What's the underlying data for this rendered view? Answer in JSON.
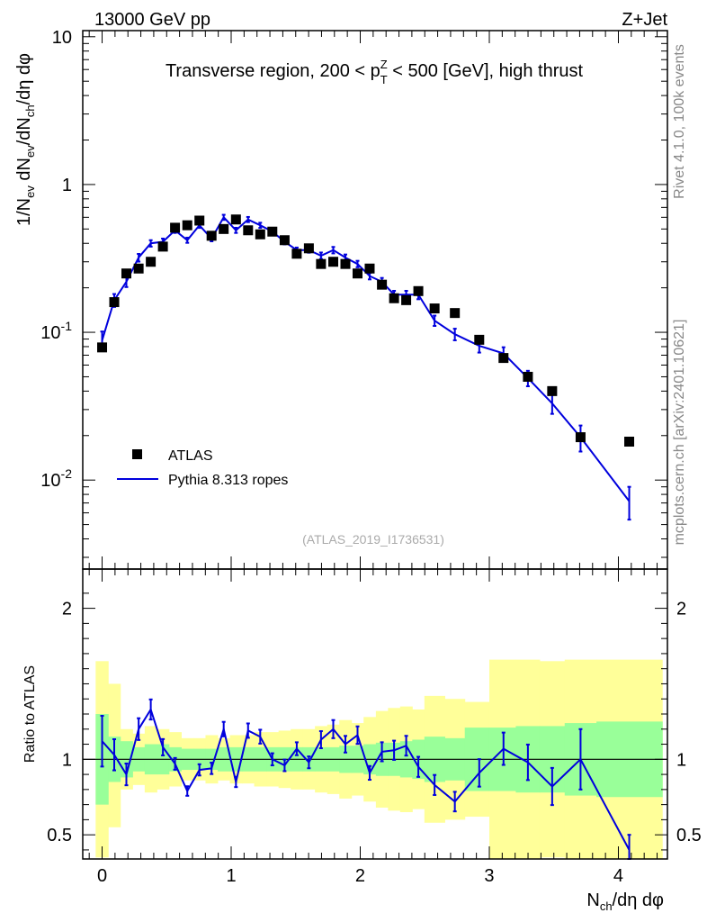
{
  "header": {
    "energy_label": "13000 GeV pp",
    "process_label": "Z+Jet",
    "rivet_label": "Rivet 4.1.0,  100k events",
    "source_label": "mcplots.cern.ch [arXiv:2401.10621]",
    "analysis_label": "(ATLAS_2019_I1736531)"
  },
  "chart_data": [
    {
      "type": "scatter",
      "scale": "log",
      "title": "Transverse region, 200 < p_T^Z < 500 [GeV], high thrust",
      "title_pre": "Transverse region, 200 < p",
      "title_sub": "T",
      "title_sup": "Z",
      "title_post": " < 500 [GeV], high thrust",
      "ylabel": "1/N_ev dN_ev/dN_ch/dη dφ",
      "xlabel": "N_ch/dη dφ",
      "xlim": [
        -0.15,
        4.38
      ],
      "ylim": [
        0.0025,
        11
      ],
      "x_ticks": [
        "0",
        "1",
        "2",
        "3",
        "4"
      ],
      "y_ticks": [
        {
          "base": "10",
          "exp": "-2",
          "value": 0.01
        },
        {
          "base": "10",
          "exp": "-1",
          "value": 0.1
        },
        {
          "base": "1",
          "exp": "",
          "value": 1
        },
        {
          "base": "10",
          "exp": "",
          "value": 10
        }
      ],
      "legend": {
        "position": "bottom-left",
        "data_label": "ATLAS",
        "mc_label": "Pythia 8.313 ropes"
      },
      "series": [
        {
          "name": "ATLAS",
          "color": "#000000",
          "x": [
            0,
            0.094,
            0.188,
            0.283,
            0.377,
            0.471,
            0.565,
            0.66,
            0.754,
            0.848,
            0.942,
            1.037,
            1.131,
            1.225,
            1.319,
            1.414,
            1.508,
            1.602,
            1.696,
            1.791,
            1.885,
            1.979,
            2.073,
            2.168,
            2.262,
            2.356,
            2.45,
            2.576,
            2.733,
            2.922,
            3.11,
            3.299,
            3.487,
            3.707,
            4.084
          ],
          "y": [
            0.079,
            0.16,
            0.25,
            0.27,
            0.3,
            0.38,
            0.51,
            0.53,
            0.57,
            0.45,
            0.5,
            0.58,
            0.49,
            0.46,
            0.48,
            0.42,
            0.34,
            0.37,
            0.29,
            0.3,
            0.29,
            0.25,
            0.27,
            0.21,
            0.17,
            0.165,
            0.19,
            0.145,
            0.135,
            0.089,
            0.067,
            0.05,
            0.04,
            0.0195,
            0.0182
          ]
        },
        {
          "name": "Pythia 8.313 ropes",
          "color": "#0000dd",
          "x": [
            0,
            0.094,
            0.188,
            0.283,
            0.377,
            0.471,
            0.565,
            0.66,
            0.754,
            0.848,
            0.942,
            1.037,
            1.131,
            1.225,
            1.319,
            1.414,
            1.508,
            1.602,
            1.696,
            1.791,
            1.885,
            1.979,
            2.073,
            2.168,
            2.262,
            2.356,
            2.45,
            2.576,
            2.733,
            2.922,
            3.11,
            3.299,
            3.487,
            3.707,
            4.084
          ],
          "y": [
            0.088,
            0.165,
            0.22,
            0.32,
            0.4,
            0.41,
            0.49,
            0.42,
            0.53,
            0.43,
            0.6,
            0.49,
            0.58,
            0.53,
            0.48,
            0.41,
            0.36,
            0.36,
            0.33,
            0.36,
            0.32,
            0.29,
            0.24,
            0.22,
            0.18,
            0.18,
            0.18,
            0.12,
            0.097,
            0.081,
            0.072,
            0.049,
            0.033,
            0.0195,
            0.0072
          ],
          "err": [
            0.15,
            0.1,
            0.08,
            0.06,
            0.05,
            0.05,
            0.04,
            0.04,
            0.04,
            0.04,
            0.04,
            0.04,
            0.04,
            0.04,
            0.04,
            0.04,
            0.04,
            0.04,
            0.05,
            0.05,
            0.05,
            0.05,
            0.05,
            0.06,
            0.06,
            0.06,
            0.07,
            0.08,
            0.09,
            0.1,
            0.1,
            0.12,
            0.15,
            0.2,
            0.25
          ]
        }
      ]
    },
    {
      "type": "line",
      "scale": "linear",
      "ylabel": "Ratio to ATLAS",
      "xlim": [
        -0.15,
        4.38
      ],
      "ylim": [
        0.34,
        2.26
      ],
      "y_ticks": [
        {
          "label": "0.5",
          "value": 0.5
        },
        {
          "label": "1",
          "value": 1
        },
        {
          "label": "2",
          "value": 2
        }
      ],
      "bin_edges": [
        -0.05,
        0.047,
        0.141,
        0.236,
        0.33,
        0.424,
        0.518,
        0.613,
        0.707,
        0.801,
        0.895,
        0.99,
        1.084,
        1.178,
        1.272,
        1.367,
        1.461,
        1.555,
        1.649,
        1.744,
        1.838,
        1.932,
        2.026,
        2.121,
        2.215,
        2.309,
        2.403,
        2.497,
        2.655,
        2.81,
        3.0,
        3.205,
        3.39,
        3.584,
        3.83,
        4.34
      ],
      "band_green_lo": [
        0.7,
        0.85,
        0.88,
        0.92,
        0.9,
        0.9,
        0.92,
        0.93,
        0.93,
        0.93,
        0.92,
        0.92,
        0.92,
        0.92,
        0.92,
        0.92,
        0.92,
        0.92,
        0.92,
        0.92,
        0.91,
        0.91,
        0.9,
        0.89,
        0.89,
        0.88,
        0.87,
        0.85,
        0.86,
        0.79,
        0.79,
        0.78,
        0.78,
        0.76,
        0.75
      ],
      "band_green_hi": [
        1.3,
        1.15,
        1.12,
        1.08,
        1.1,
        1.1,
        1.08,
        1.07,
        1.07,
        1.07,
        1.08,
        1.08,
        1.08,
        1.08,
        1.08,
        1.08,
        1.08,
        1.08,
        1.08,
        1.08,
        1.09,
        1.09,
        1.1,
        1.11,
        1.11,
        1.12,
        1.13,
        1.15,
        1.14,
        1.21,
        1.21,
        1.22,
        1.22,
        1.24,
        1.25
      ],
      "band_yellow_lo": [
        0.35,
        0.55,
        0.8,
        0.83,
        0.78,
        0.8,
        0.82,
        0.86,
        0.86,
        0.84,
        0.86,
        0.84,
        0.84,
        0.82,
        0.82,
        0.81,
        0.8,
        0.8,
        0.78,
        0.77,
        0.74,
        0.76,
        0.72,
        0.68,
        0.66,
        0.65,
        0.67,
        0.58,
        0.6,
        0.62,
        0.34,
        0.34,
        0.35,
        0.34,
        0.34
      ],
      "band_yellow_hi": [
        1.65,
        1.5,
        1.2,
        1.17,
        1.22,
        1.2,
        1.18,
        1.14,
        1.14,
        1.16,
        1.14,
        1.16,
        1.16,
        1.18,
        1.18,
        1.19,
        1.2,
        1.2,
        1.22,
        1.23,
        1.26,
        1.24,
        1.28,
        1.32,
        1.34,
        1.35,
        1.33,
        1.42,
        1.4,
        1.38,
        1.66,
        1.66,
        1.65,
        1.66,
        1.66
      ],
      "series": [
        {
          "name": "Pythia 8.313 ropes / ATLAS",
          "color": "#0000dd",
          "x": [
            0,
            0.094,
            0.188,
            0.283,
            0.377,
            0.471,
            0.565,
            0.66,
            0.754,
            0.848,
            0.942,
            1.037,
            1.131,
            1.225,
            1.319,
            1.414,
            1.508,
            1.602,
            1.696,
            1.791,
            1.885,
            1.979,
            2.073,
            2.168,
            2.262,
            2.356,
            2.45,
            2.576,
            2.733,
            2.922,
            3.11,
            3.299,
            3.487,
            3.707,
            4.084
          ],
          "y": [
            1.12,
            1.03,
            0.9,
            1.2,
            1.33,
            1.08,
            0.97,
            0.79,
            0.93,
            0.94,
            1.2,
            0.85,
            1.19,
            1.15,
            1.0,
            0.96,
            1.07,
            0.98,
            1.13,
            1.2,
            1.1,
            1.16,
            0.91,
            1.05,
            1.06,
            1.09,
            0.95,
            0.83,
            0.72,
            0.91,
            1.07,
            0.98,
            0.82,
            1.0,
            0.4
          ],
          "err": [
            0.15,
            0.1,
            0.08,
            0.06,
            0.05,
            0.05,
            0.04,
            0.04,
            0.04,
            0.04,
            0.04,
            0.04,
            0.04,
            0.04,
            0.04,
            0.04,
            0.04,
            0.04,
            0.05,
            0.05,
            0.05,
            0.05,
            0.05,
            0.06,
            0.06,
            0.06,
            0.07,
            0.08,
            0.09,
            0.1,
            0.1,
            0.12,
            0.15,
            0.2,
            0.25
          ]
        }
      ]
    }
  ]
}
